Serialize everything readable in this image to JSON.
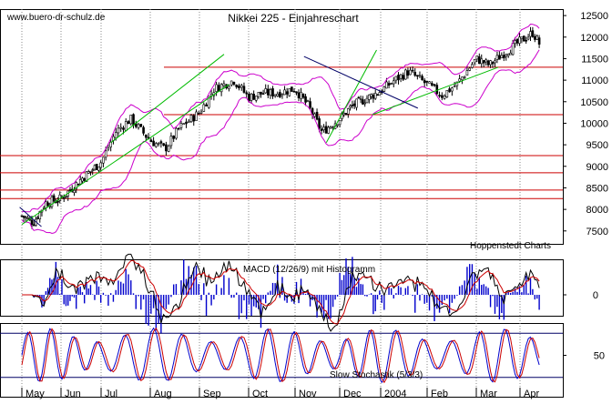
{
  "watermark": "www.buero-dr-schulz.de",
  "title": "Nikkei 225 - Einjahreschart",
  "credit": "Hoppenstedt Charts",
  "colors": {
    "candle": "#000000",
    "bollinger": "#cc00cc",
    "trend_green": "#00bb00",
    "support_red": "#cc0000",
    "trend_navy": "#000066",
    "macd_line": "#000000",
    "macd_signal": "#cc0000",
    "macd_hist": "#0000cc",
    "stoch_k": "#0000cc",
    "stoch_d": "#cc0000"
  },
  "chart_data": [
    {
      "type": "candlestick",
      "title": "Nikkei 225 - Einjahreschart",
      "x_tick_labels": [
        "May",
        "Jun",
        "Jul",
        "Aug",
        "Sep",
        "Oct",
        "Nov",
        "Dec",
        "2004",
        "Feb",
        "Mar",
        "Apr"
      ],
      "y_ticks": [
        7500,
        8000,
        8500,
        9000,
        9500,
        10000,
        10500,
        11000,
        11500,
        12000,
        12500
      ],
      "y_tick_labels": [
        "7500",
        "8000",
        "8500",
        "9000",
        "9500",
        "10000",
        "10500",
        "11000",
        "11500",
        "12000",
        "12500"
      ],
      "ylim": [
        7200,
        12650
      ],
      "trend_approx_close": [
        {
          "m": 0.0,
          "v": 7850
        },
        {
          "m": 0.3,
          "v": 7700
        },
        {
          "m": 0.6,
          "v": 8150
        },
        {
          "m": 1.0,
          "v": 8250
        },
        {
          "m": 1.5,
          "v": 8700
        },
        {
          "m": 2.0,
          "v": 9100
        },
        {
          "m": 2.3,
          "v": 9800
        },
        {
          "m": 2.6,
          "v": 10100
        },
        {
          "m": 3.0,
          "v": 9600
        },
        {
          "m": 3.3,
          "v": 9400
        },
        {
          "m": 3.6,
          "v": 9900
        },
        {
          "m": 4.0,
          "v": 10250
        },
        {
          "m": 4.3,
          "v": 10800
        },
        {
          "m": 4.7,
          "v": 11000
        },
        {
          "m": 5.0,
          "v": 10600
        },
        {
          "m": 5.3,
          "v": 10700
        },
        {
          "m": 5.6,
          "v": 10700
        },
        {
          "m": 6.0,
          "v": 10800
        },
        {
          "m": 6.3,
          "v": 10400
        },
        {
          "m": 6.6,
          "v": 9800
        },
        {
          "m": 7.0,
          "v": 10100
        },
        {
          "m": 7.3,
          "v": 10400
        },
        {
          "m": 7.6,
          "v": 10550
        },
        {
          "m": 8.0,
          "v": 10750
        },
        {
          "m": 8.3,
          "v": 11000
        },
        {
          "m": 8.6,
          "v": 11200
        },
        {
          "m": 9.0,
          "v": 10900
        },
        {
          "m": 9.3,
          "v": 10650
        },
        {
          "m": 9.6,
          "v": 10900
        },
        {
          "m": 10.0,
          "v": 11500
        },
        {
          "m": 10.3,
          "v": 11350
        },
        {
          "m": 10.6,
          "v": 11600
        },
        {
          "m": 11.0,
          "v": 11900
        },
        {
          "m": 11.3,
          "v": 12100
        },
        {
          "m": 11.45,
          "v": 11850
        }
      ],
      "horizontal_lines": [
        8250,
        8450,
        8850,
        9250,
        10200,
        11300
      ],
      "bollinger": "shown",
      "trendlines": "shown"
    },
    {
      "type": "line+bar",
      "title": "MACD (12/26/9) mit Histogramm",
      "y_ticks": [
        0
      ],
      "y_tick_labels": [
        "0"
      ],
      "series": [
        "MACD",
        "Signal",
        "Histogramm"
      ]
    },
    {
      "type": "line",
      "title": "Slow Stochastik (5/3/3)",
      "y_ticks": [
        50
      ],
      "y_tick_labels": [
        "50"
      ],
      "reference_levels": [
        20,
        80
      ],
      "series": [
        "%K",
        "%D"
      ]
    }
  ]
}
